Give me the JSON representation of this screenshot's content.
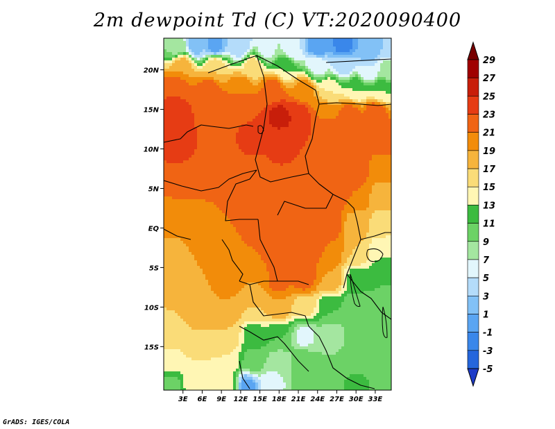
{
  "title": "2m dewpoint Td (C) VT:2020090400",
  "credit": "GrADS: IGES/COLA",
  "chart_data": {
    "type": "heatmap",
    "title": "2m dewpoint Td (C) VT:2020090400",
    "variable": "2m dewpoint Td",
    "units": "C",
    "valid_time": "2020090400",
    "lon_range": [
      0,
      35.5
    ],
    "lat_range": [
      -20.5,
      24
    ],
    "x_ticks": [
      {
        "value": 3,
        "label": "3E"
      },
      {
        "value": 6,
        "label": "6E"
      },
      {
        "value": 9,
        "label": "9E"
      },
      {
        "value": 12,
        "label": "12E"
      },
      {
        "value": 15,
        "label": "15E"
      },
      {
        "value": 18,
        "label": "18E"
      },
      {
        "value": 21,
        "label": "21E"
      },
      {
        "value": 24,
        "label": "24E"
      },
      {
        "value": 27,
        "label": "27E"
      },
      {
        "value": 30,
        "label": "30E"
      },
      {
        "value": 33,
        "label": "33E"
      }
    ],
    "y_ticks": [
      {
        "value": 20,
        "label": "20N"
      },
      {
        "value": 15,
        "label": "15N"
      },
      {
        "value": 10,
        "label": "10N"
      },
      {
        "value": 5,
        "label": "5N"
      },
      {
        "value": 0,
        "label": "EQ"
      },
      {
        "value": -5,
        "label": "5S"
      },
      {
        "value": -10,
        "label": "10S"
      },
      {
        "value": -15,
        "label": "15S"
      }
    ],
    "colorbar": {
      "levels": [
        -5,
        -3,
        -1,
        1,
        3,
        5,
        7,
        9,
        11,
        13,
        15,
        17,
        19,
        21,
        23,
        25,
        27,
        29
      ],
      "labels": [
        "-5",
        "-3",
        "-1",
        "1",
        "3",
        "5",
        "7",
        "9",
        "11",
        "13",
        "15",
        "17",
        "19",
        "21",
        "23",
        "25",
        "27",
        "29"
      ],
      "colors": [
        "#1e3cc8",
        "#2566dc",
        "#3a87ea",
        "#5aa5f2",
        "#82c1f6",
        "#b4dcfa",
        "#e2f6fc",
        "#a4e6a0",
        "#6cd266",
        "#3cbb40",
        "#fff6b4",
        "#fadc78",
        "#f6b43c",
        "#f28c0a",
        "#f06414",
        "#e63c14",
        "#c81e0a",
        "#a00000",
        "#780000"
      ]
    },
    "fields": [
      {
        "lon": 2,
        "lat": 23,
        "value": 8
      },
      {
        "lon": 5,
        "lat": 23,
        "value": 2
      },
      {
        "lon": 8,
        "lat": 23,
        "value": 0
      },
      {
        "lon": 12,
        "lat": 23,
        "value": 3
      },
      {
        "lon": 16,
        "lat": 22.5,
        "value": 6
      },
      {
        "lon": 20,
        "lat": 22.5,
        "value": 5
      },
      {
        "lon": 24,
        "lat": 23,
        "value": -1
      },
      {
        "lon": 28,
        "lat": 23,
        "value": -2
      },
      {
        "lon": 32,
        "lat": 22.5,
        "value": 1
      },
      {
        "lon": 35,
        "lat": 23,
        "value": 3
      },
      {
        "lon": 3,
        "lat": 20.5,
        "value": 19
      },
      {
        "lon": 8,
        "lat": 20.5,
        "value": 17
      },
      {
        "lon": 14,
        "lat": 20.5,
        "value": 16
      },
      {
        "lon": 19,
        "lat": 20.5,
        "value": 13
      },
      {
        "lon": 24,
        "lat": 20.5,
        "value": 6
      },
      {
        "lon": 28,
        "lat": 20.5,
        "value": 4
      },
      {
        "lon": 32,
        "lat": 20,
        "value": 5
      },
      {
        "lon": 35,
        "lat": 20,
        "value": 8
      },
      {
        "lon": 2,
        "lat": 17.5,
        "value": 23
      },
      {
        "lon": 7,
        "lat": 17.5,
        "value": 22
      },
      {
        "lon": 12,
        "lat": 17.5,
        "value": 21
      },
      {
        "lon": 17,
        "lat": 17.5,
        "value": 22
      },
      {
        "lon": 22,
        "lat": 17.5,
        "value": 20
      },
      {
        "lon": 26,
        "lat": 17.5,
        "value": 15
      },
      {
        "lon": 30,
        "lat": 17.5,
        "value": 13
      },
      {
        "lon": 34,
        "lat": 17.5,
        "value": 13
      },
      {
        "lon": 2,
        "lat": 14.5,
        "value": 24
      },
      {
        "lon": 6,
        "lat": 14.5,
        "value": 23
      },
      {
        "lon": 10,
        "lat": 14.5,
        "value": 23
      },
      {
        "lon": 14,
        "lat": 14.5,
        "value": 23
      },
      {
        "lon": 18,
        "lat": 14,
        "value": 26
      },
      {
        "lon": 21,
        "lat": 14,
        "value": 25
      },
      {
        "lon": 25,
        "lat": 14.5,
        "value": 21
      },
      {
        "lon": 29,
        "lat": 14.5,
        "value": 22
      },
      {
        "lon": 33,
        "lat": 14.5,
        "value": 23
      },
      {
        "lon": 2,
        "lat": 11,
        "value": 24
      },
      {
        "lon": 6,
        "lat": 11,
        "value": 23
      },
      {
        "lon": 10,
        "lat": 11,
        "value": 23
      },
      {
        "lon": 14,
        "lat": 11,
        "value": 24
      },
      {
        "lon": 18,
        "lat": 11,
        "value": 24
      },
      {
        "lon": 22,
        "lat": 11,
        "value": 23
      },
      {
        "lon": 26,
        "lat": 11,
        "value": 23
      },
      {
        "lon": 30,
        "lat": 11,
        "value": 23
      },
      {
        "lon": 34,
        "lat": 11,
        "value": 22
      },
      {
        "lon": 2,
        "lat": 7.5,
        "value": 23
      },
      {
        "lon": 6,
        "lat": 7.5,
        "value": 23
      },
      {
        "lon": 10,
        "lat": 7.5,
        "value": 22
      },
      {
        "lon": 14,
        "lat": 7.5,
        "value": 22
      },
      {
        "lon": 18,
        "lat": 7.5,
        "value": 23
      },
      {
        "lon": 22,
        "lat": 7.5,
        "value": 23
      },
      {
        "lon": 26,
        "lat": 7.5,
        "value": 23
      },
      {
        "lon": 30,
        "lat": 7.5,
        "value": 22
      },
      {
        "lon": 34,
        "lat": 7.5,
        "value": 20
      },
      {
        "lon": 1,
        "lat": 4,
        "value": 21
      },
      {
        "lon": 5,
        "lat": 4,
        "value": 21
      },
      {
        "lon": 10,
        "lat": 4,
        "value": 21
      },
      {
        "lon": 14,
        "lat": 4,
        "value": 22
      },
      {
        "lon": 18,
        "lat": 4,
        "value": 22
      },
      {
        "lon": 22,
        "lat": 4,
        "value": 23
      },
      {
        "lon": 26,
        "lat": 4,
        "value": 23
      },
      {
        "lon": 30,
        "lat": 4,
        "value": 21
      },
      {
        "lon": 34,
        "lat": 4,
        "value": 18
      },
      {
        "lon": 1,
        "lat": 0.5,
        "value": 20
      },
      {
        "lon": 5,
        "lat": 0.5,
        "value": 20
      },
      {
        "lon": 10,
        "lat": 0.5,
        "value": 21
      },
      {
        "lon": 14,
        "lat": 0.5,
        "value": 22
      },
      {
        "lon": 18,
        "lat": 0.5,
        "value": 23
      },
      {
        "lon": 22,
        "lat": 0.5,
        "value": 23
      },
      {
        "lon": 26,
        "lat": 0.5,
        "value": 22
      },
      {
        "lon": 30,
        "lat": 0.5,
        "value": 18
      },
      {
        "lon": 34,
        "lat": 0.5,
        "value": 16
      },
      {
        "lon": 1,
        "lat": -3,
        "value": 18
      },
      {
        "lon": 5,
        "lat": -3,
        "value": 19
      },
      {
        "lon": 10,
        "lat": -3,
        "value": 20
      },
      {
        "lon": 14,
        "lat": -3,
        "value": 21
      },
      {
        "lon": 18,
        "lat": -3,
        "value": 23
      },
      {
        "lon": 22,
        "lat": -3,
        "value": 23
      },
      {
        "lon": 26,
        "lat": -3,
        "value": 21
      },
      {
        "lon": 30,
        "lat": -3,
        "value": 17
      },
      {
        "lon": 34,
        "lat": -3,
        "value": 13
      },
      {
        "lon": 1,
        "lat": -6.5,
        "value": 18
      },
      {
        "lon": 5,
        "lat": -6.5,
        "value": 19
      },
      {
        "lon": 10,
        "lat": -6.5,
        "value": 20
      },
      {
        "lon": 14,
        "lat": -6.5,
        "value": 19
      },
      {
        "lon": 18,
        "lat": -6.5,
        "value": 22
      },
      {
        "lon": 22,
        "lat": -6.5,
        "value": 22
      },
      {
        "lon": 26,
        "lat": -6.5,
        "value": 19
      },
      {
        "lon": 30,
        "lat": -6.5,
        "value": 12
      },
      {
        "lon": 34,
        "lat": -6.5,
        "value": 11
      },
      {
        "lon": 1,
        "lat": -10,
        "value": 17
      },
      {
        "lon": 5,
        "lat": -10,
        "value": 18
      },
      {
        "lon": 10,
        "lat": -10,
        "value": 19
      },
      {
        "lon": 14,
        "lat": -10,
        "value": 17
      },
      {
        "lon": 18,
        "lat": -10,
        "value": 19
      },
      {
        "lon": 22,
        "lat": -10,
        "value": 16
      },
      {
        "lon": 26,
        "lat": -10,
        "value": 11
      },
      {
        "lon": 30,
        "lat": -10,
        "value": 9
      },
      {
        "lon": 34,
        "lat": -10,
        "value": 10
      },
      {
        "lon": 1,
        "lat": -13.5,
        "value": 16
      },
      {
        "lon": 5,
        "lat": -13.5,
        "value": 17
      },
      {
        "lon": 10,
        "lat": -13.5,
        "value": 17
      },
      {
        "lon": 14,
        "lat": -13.5,
        "value": 12
      },
      {
        "lon": 18,
        "lat": -13.5,
        "value": 11
      },
      {
        "lon": 22,
        "lat": -13.5,
        "value": 6
      },
      {
        "lon": 26,
        "lat": -13.5,
        "value": 8
      },
      {
        "lon": 30,
        "lat": -13.5,
        "value": 9
      },
      {
        "lon": 34,
        "lat": -13.5,
        "value": 10
      },
      {
        "lon": 1,
        "lat": -17,
        "value": 14
      },
      {
        "lon": 5,
        "lat": -17,
        "value": 15
      },
      {
        "lon": 10,
        "lat": -17,
        "value": 15
      },
      {
        "lon": 14,
        "lat": -17,
        "value": 10
      },
      {
        "lon": 18,
        "lat": -17,
        "value": 8
      },
      {
        "lon": 22,
        "lat": -17,
        "value": 10
      },
      {
        "lon": 26,
        "lat": -17,
        "value": 9
      },
      {
        "lon": 30,
        "lat": -17,
        "value": 10
      },
      {
        "lon": 34,
        "lat": -17,
        "value": 10
      },
      {
        "lon": 1,
        "lat": -20,
        "value": 10
      },
      {
        "lon": 5,
        "lat": -20,
        "value": 14
      },
      {
        "lon": 10,
        "lat": -20,
        "value": 14
      },
      {
        "lon": 13,
        "lat": -20,
        "value": 0
      },
      {
        "lon": 17,
        "lat": -19.5,
        "value": 6
      },
      {
        "lon": 22,
        "lat": -20,
        "value": 10
      },
      {
        "lon": 26,
        "lat": -20,
        "value": 10
      },
      {
        "lon": 30,
        "lat": -20,
        "value": 12
      },
      {
        "lon": 34,
        "lat": -20,
        "value": 10
      }
    ]
  }
}
